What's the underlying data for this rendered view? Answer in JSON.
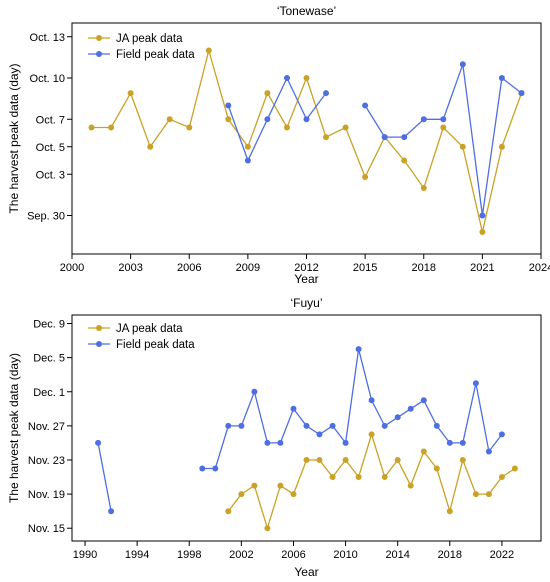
{
  "colors": {
    "ja": "#C9A227",
    "field": "#4F6FE0"
  },
  "chart_data": [
    {
      "type": "line",
      "title": "‘Tonewase’",
      "xlabel": "Year",
      "ylabel": "The harvest peak data (day)",
      "xlim": [
        2000,
        2024
      ],
      "ylim": [
        -2.8,
        14.0
      ],
      "x_ticks": [
        2000,
        2003,
        2006,
        2009,
        2012,
        2015,
        2018,
        2021,
        2024
      ],
      "y_ticks": [
        {
          "value": 0,
          "label": "Sep. 30"
        },
        {
          "value": 3,
          "label": "Oct. 3"
        },
        {
          "value": 5,
          "label": "Oct. 5"
        },
        {
          "value": 7,
          "label": "Oct. 7"
        },
        {
          "value": 10,
          "label": "Oct. 10"
        },
        {
          "value": 13,
          "label": "Oct. 13"
        }
      ],
      "legend": "top-left",
      "series": [
        {
          "name": "JA peak data",
          "color_key": "ja",
          "points": [
            [
              2001,
              6.4
            ],
            [
              2002,
              6.4
            ],
            [
              2003,
              8.9
            ],
            [
              2004,
              5.0
            ],
            [
              2005,
              7.0
            ],
            [
              2006,
              6.4
            ],
            [
              2007,
              12.0
            ],
            [
              2008,
              7.0
            ],
            [
              2009,
              5.0
            ],
            [
              2010,
              8.9
            ],
            [
              2011,
              6.4
            ],
            [
              2012,
              10.0
            ],
            [
              2013,
              5.7
            ],
            [
              2014,
              6.4
            ],
            [
              2015,
              2.8
            ],
            [
              2016,
              5.7
            ],
            [
              2017,
              4.0
            ],
            [
              2018,
              2.0
            ],
            [
              2019,
              6.4
            ],
            [
              2020,
              5.0
            ],
            [
              2021,
              -1.2
            ],
            [
              2022,
              5.0
            ],
            [
              2023,
              8.9
            ]
          ]
        },
        {
          "name": "Field peak data",
          "color_key": "field",
          "segments": [
            [
              [
                2008,
                8.0
              ],
              [
                2009,
                4.0
              ],
              [
                2010,
                7.0
              ],
              [
                2011,
                10.0
              ],
              [
                2012,
                7.0
              ],
              [
                2013,
                8.9
              ]
            ],
            [
              [
                2015,
                8.0
              ],
              [
                2016,
                5.7
              ],
              [
                2017,
                5.7
              ],
              [
                2018,
                7.0
              ],
              [
                2019,
                7.0
              ],
              [
                2020,
                11.0
              ],
              [
                2021,
                0.0
              ],
              [
                2022,
                10.0
              ],
              [
                2023,
                8.9
              ]
            ]
          ]
        }
      ]
    },
    {
      "type": "line",
      "title": "‘Fuyu’",
      "xlabel": "Year",
      "ylabel": "The harvest peak data (day)",
      "xlim": [
        1989,
        2025
      ],
      "ylim": [
        -1.5,
        25.0
      ],
      "x_ticks": [
        1990,
        1994,
        1998,
        2002,
        2006,
        2010,
        2014,
        2018,
        2022
      ],
      "y_ticks": [
        {
          "value": 0,
          "label": "Nov. 15"
        },
        {
          "value": 4,
          "label": "Nov. 19"
        },
        {
          "value": 8,
          "label": "Nov. 23"
        },
        {
          "value": 12,
          "label": "Nov. 27"
        },
        {
          "value": 16,
          "label": "Dec. 1"
        },
        {
          "value": 20,
          "label": "Dec. 5"
        },
        {
          "value": 24,
          "label": "Dec. 9"
        }
      ],
      "legend": "top-left",
      "series": [
        {
          "name": "JA peak data",
          "color_key": "ja",
          "points": [
            [
              2001,
              2.0
            ],
            [
              2002,
              4.0
            ],
            [
              2003,
              5.0
            ],
            [
              2004,
              0.0
            ],
            [
              2005,
              5.0
            ],
            [
              2006,
              4.0
            ],
            [
              2007,
              8.0
            ],
            [
              2008,
              8.0
            ],
            [
              2009,
              6.0
            ],
            [
              2010,
              8.0
            ],
            [
              2011,
              6.0
            ],
            [
              2012,
              11.0
            ],
            [
              2013,
              6.0
            ],
            [
              2014,
              8.0
            ],
            [
              2015,
              5.0
            ],
            [
              2016,
              9.0
            ],
            [
              2017,
              7.0
            ],
            [
              2018,
              2.0
            ],
            [
              2019,
              8.0
            ],
            [
              2020,
              4.0
            ],
            [
              2021,
              4.0
            ],
            [
              2022,
              6.0
            ],
            [
              2023,
              7.0
            ]
          ]
        },
        {
          "name": "Field peak data",
          "color_key": "field",
          "segments": [
            [
              [
                1991,
                10.0
              ],
              [
                1992,
                2.0
              ]
            ],
            [
              [
                1999,
                7.0
              ],
              [
                2000,
                7.0
              ],
              [
                2001,
                12.0
              ],
              [
                2002,
                12.0
              ],
              [
                2003,
                16.0
              ],
              [
                2004,
                10.0
              ],
              [
                2005,
                10.0
              ],
              [
                2006,
                14.0
              ],
              [
                2007,
                12.0
              ],
              [
                2008,
                11.0
              ],
              [
                2009,
                12.0
              ],
              [
                2010,
                10.0
              ],
              [
                2011,
                21.0
              ],
              [
                2012,
                15.0
              ],
              [
                2013,
                12.0
              ],
              [
                2014,
                13.0
              ],
              [
                2015,
                14.0
              ],
              [
                2016,
                15.0
              ],
              [
                2017,
                12.0
              ],
              [
                2018,
                10.0
              ],
              [
                2019,
                10.0
              ],
              [
                2020,
                17.0
              ],
              [
                2021,
                9.0
              ],
              [
                2022,
                11.0
              ]
            ]
          ]
        }
      ]
    }
  ]
}
